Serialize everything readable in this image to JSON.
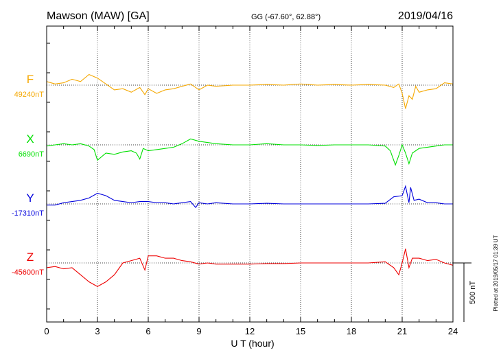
{
  "header": {
    "station": "Mawson (MAW)  [GA]",
    "coords": "GG (-67.60°,  62.88°)",
    "date": "2019/04/16"
  },
  "chart_data": {
    "type": "line",
    "xlabel": "U T (hour)",
    "xlim": [
      0,
      24
    ],
    "xticks": [
      0,
      3,
      6,
      9,
      12,
      15,
      18,
      21,
      24
    ],
    "grid": "dotted vertical lines every 3 hours",
    "scale_bar": {
      "label": "500 nT",
      "value_nT": 500
    },
    "plotted_note": "Plotted at 2019/05/17 01:39 UT",
    "series": [
      {
        "name": "F",
        "baseline_label": "49240nT",
        "baseline_nT": 49240,
        "color": "#f5a800",
        "points": [
          [
            0,
            49270
          ],
          [
            0.5,
            49250
          ],
          [
            1,
            49260
          ],
          [
            1.5,
            49290
          ],
          [
            2,
            49270
          ],
          [
            2.5,
            49330
          ],
          [
            3,
            49300
          ],
          [
            3.5,
            49250
          ],
          [
            4,
            49200
          ],
          [
            4.5,
            49210
          ],
          [
            5,
            49180
          ],
          [
            5.5,
            49220
          ],
          [
            5.8,
            49160
          ],
          [
            6,
            49210
          ],
          [
            6.5,
            49170
          ],
          [
            7,
            49200
          ],
          [
            7.5,
            49210
          ],
          [
            8,
            49230
          ],
          [
            8.5,
            49250
          ],
          [
            9,
            49200
          ],
          [
            9.5,
            49240
          ],
          [
            10,
            49230
          ],
          [
            11,
            49240
          ],
          [
            12,
            49240
          ],
          [
            13,
            49245
          ],
          [
            14,
            49240
          ],
          [
            15,
            49250
          ],
          [
            16,
            49240
          ],
          [
            17,
            49245
          ],
          [
            18,
            49240
          ],
          [
            19,
            49245
          ],
          [
            20,
            49240
          ],
          [
            20.5,
            49220
          ],
          [
            20.8,
            49250
          ],
          [
            21,
            49170
          ],
          [
            21.2,
            49040
          ],
          [
            21.4,
            49150
          ],
          [
            21.6,
            49120
          ],
          [
            21.8,
            49230
          ],
          [
            22,
            49180
          ],
          [
            22.5,
            49200
          ],
          [
            23,
            49210
          ],
          [
            23.5,
            49260
          ],
          [
            24,
            49250
          ]
        ]
      },
      {
        "name": "X",
        "baseline_label": "6690nT",
        "baseline_nT": 6690,
        "color": "#00e000",
        "points": [
          [
            0,
            6680
          ],
          [
            0.5,
            6690
          ],
          [
            1,
            6700
          ],
          [
            1.5,
            6690
          ],
          [
            2,
            6700
          ],
          [
            2.5,
            6680
          ],
          [
            2.8,
            6650
          ],
          [
            3,
            6560
          ],
          [
            3.5,
            6620
          ],
          [
            4,
            6610
          ],
          [
            4.5,
            6630
          ],
          [
            5,
            6640
          ],
          [
            5.3,
            6620
          ],
          [
            5.5,
            6570
          ],
          [
            5.7,
            6660
          ],
          [
            6,
            6640
          ],
          [
            6.5,
            6650
          ],
          [
            7,
            6660
          ],
          [
            7.5,
            6670
          ],
          [
            8,
            6700
          ],
          [
            8.5,
            6740
          ],
          [
            9,
            6720
          ],
          [
            9.5,
            6710
          ],
          [
            10,
            6700
          ],
          [
            11,
            6690
          ],
          [
            12,
            6690
          ],
          [
            13,
            6700
          ],
          [
            14,
            6690
          ],
          [
            15,
            6690
          ],
          [
            16,
            6685
          ],
          [
            17,
            6690
          ],
          [
            18,
            6690
          ],
          [
            19,
            6690
          ],
          [
            20,
            6680
          ],
          [
            20.3,
            6640
          ],
          [
            20.6,
            6520
          ],
          [
            20.8,
            6600
          ],
          [
            21,
            6690
          ],
          [
            21.2,
            6620
          ],
          [
            21.4,
            6530
          ],
          [
            21.6,
            6620
          ],
          [
            22,
            6660
          ],
          [
            22.5,
            6670
          ],
          [
            23,
            6680
          ],
          [
            23.5,
            6690
          ],
          [
            24,
            6690
          ]
        ]
      },
      {
        "name": "Y",
        "baseline_label": "-17310nT",
        "baseline_nT": -17310,
        "color": "#0000dd",
        "points": [
          [
            0,
            -17320
          ],
          [
            0.5,
            -17320
          ],
          [
            1,
            -17300
          ],
          [
            1.5,
            -17290
          ],
          [
            2,
            -17280
          ],
          [
            2.5,
            -17260
          ],
          [
            3,
            -17220
          ],
          [
            3.5,
            -17240
          ],
          [
            4,
            -17280
          ],
          [
            4.5,
            -17290
          ],
          [
            5,
            -17300
          ],
          [
            5.5,
            -17290
          ],
          [
            6,
            -17290
          ],
          [
            6.5,
            -17300
          ],
          [
            7,
            -17300
          ],
          [
            7.5,
            -17310
          ],
          [
            8,
            -17300
          ],
          [
            8.5,
            -17290
          ],
          [
            8.8,
            -17340
          ],
          [
            9,
            -17300
          ],
          [
            9.5,
            -17310
          ],
          [
            10,
            -17300
          ],
          [
            11,
            -17310
          ],
          [
            12,
            -17310
          ],
          [
            13,
            -17305
          ],
          [
            14,
            -17310
          ],
          [
            15,
            -17310
          ],
          [
            16,
            -17310
          ],
          [
            17,
            -17310
          ],
          [
            18,
            -17310
          ],
          [
            19,
            -17310
          ],
          [
            20,
            -17305
          ],
          [
            20.5,
            -17250
          ],
          [
            21,
            -17240
          ],
          [
            21.2,
            -17160
          ],
          [
            21.4,
            -17300
          ],
          [
            21.5,
            -17170
          ],
          [
            21.7,
            -17280
          ],
          [
            22,
            -17270
          ],
          [
            22.5,
            -17300
          ],
          [
            23,
            -17300
          ],
          [
            23.5,
            -17310
          ],
          [
            24,
            -17310
          ]
        ]
      },
      {
        "name": "Z",
        "baseline_label": "-45600nT",
        "baseline_nT": -45600,
        "color": "#ee0000",
        "points": [
          [
            0,
            -45640
          ],
          [
            0.5,
            -45630
          ],
          [
            1,
            -45650
          ],
          [
            1.5,
            -45640
          ],
          [
            2,
            -45700
          ],
          [
            2.5,
            -45760
          ],
          [
            3,
            -45800
          ],
          [
            3.5,
            -45760
          ],
          [
            4,
            -45700
          ],
          [
            4.5,
            -45600
          ],
          [
            5,
            -45580
          ],
          [
            5.5,
            -45560
          ],
          [
            5.8,
            -45660
          ],
          [
            6,
            -45540
          ],
          [
            6.5,
            -45540
          ],
          [
            7,
            -45560
          ],
          [
            7.5,
            -45560
          ],
          [
            8,
            -45580
          ],
          [
            8.5,
            -45590
          ],
          [
            9,
            -45610
          ],
          [
            9.5,
            -45600
          ],
          [
            10,
            -45610
          ],
          [
            11,
            -45610
          ],
          [
            12,
            -45610
          ],
          [
            13,
            -45605
          ],
          [
            14,
            -45605
          ],
          [
            15,
            -45600
          ],
          [
            16,
            -45600
          ],
          [
            17,
            -45600
          ],
          [
            18,
            -45600
          ],
          [
            19,
            -45600
          ],
          [
            20,
            -45590
          ],
          [
            20.5,
            -45640
          ],
          [
            20.8,
            -45700
          ],
          [
            21,
            -45600
          ],
          [
            21.2,
            -45480
          ],
          [
            21.4,
            -45640
          ],
          [
            21.6,
            -45560
          ],
          [
            22,
            -45560
          ],
          [
            22.5,
            -45580
          ],
          [
            23,
            -45570
          ],
          [
            23.5,
            -45600
          ],
          [
            24,
            -45620
          ]
        ]
      }
    ]
  }
}
